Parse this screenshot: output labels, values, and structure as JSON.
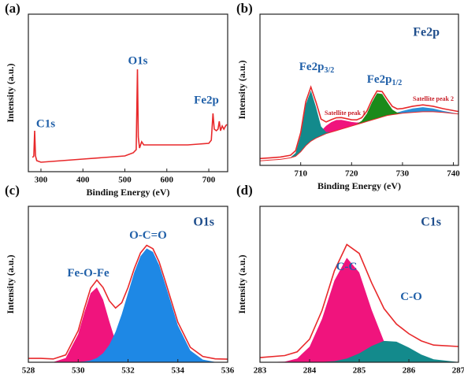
{
  "chart_data": [
    {
      "type": "line",
      "panel_label": "(a)",
      "xlabel": "Binding Energy (eV)",
      "ylabel": "Intensity (a.u.)",
      "xlim": [
        270,
        745
      ],
      "xticks": [
        300,
        400,
        500,
        600,
        700
      ],
      "ylim": [
        0,
        100
      ],
      "annotations": [
        "C1s",
        "O1s",
        "Fe2p"
      ],
      "x": [
        280,
        283,
        285,
        287,
        290,
        300,
        350,
        400,
        450,
        500,
        520,
        527,
        530,
        532,
        535,
        540,
        545,
        560,
        600,
        650,
        700,
        706,
        710,
        713,
        718,
        722,
        725,
        728,
        732,
        736,
        740,
        743
      ],
      "series": [
        {
          "color": "#e8292b",
          "values": [
            9,
            10,
            26,
            10,
            7,
            6,
            7,
            8,
            9,
            10,
            12,
            14,
            65,
            22,
            15,
            19,
            17,
            17,
            17,
            17,
            18,
            20,
            37,
            27,
            26,
            27,
            32,
            26,
            29,
            27,
            29,
            30
          ]
        }
      ]
    },
    {
      "type": "area",
      "panel_label": "(b)",
      "title": "Fe2p",
      "xlabel": "Binding Energy (eV)",
      "ylabel": "Intensity (a.u.)",
      "xlim": [
        702,
        741
      ],
      "xticks": [
        710,
        720,
        730,
        740
      ],
      "ylim": [
        0,
        100
      ],
      "x": [
        702,
        704,
        706,
        708,
        709,
        710,
        711,
        712,
        713,
        714,
        715,
        716,
        717,
        718,
        719,
        720,
        721,
        722,
        723,
        724,
        725,
        726,
        727,
        728,
        729,
        730,
        732,
        734,
        736,
        738,
        741
      ],
      "baseline": {
        "color": "#e8292b",
        "values": [
          3,
          3.5,
          4,
          5,
          6,
          9,
          13,
          16,
          18,
          19.5,
          21,
          22,
          23,
          24,
          25,
          26,
          27,
          28,
          29,
          30,
          31,
          32,
          33,
          33.5,
          34,
          34.5,
          35,
          35.5,
          35.5,
          35,
          34
        ]
      },
      "series": [
        {
          "name": "Satellite peak 1",
          "color": "#f0147d",
          "fill": true,
          "values": [
            0,
            0,
            0,
            0,
            0,
            0.1,
            0.3,
            0.8,
            1.8,
            3.3,
            5.2,
            6.6,
            7,
            6.1,
            4.4,
            2.7,
            1.3,
            0.5,
            0.2,
            0.1,
            0,
            0,
            0,
            0,
            0,
            0,
            0,
            0,
            0,
            0,
            0
          ]
        },
        {
          "name": "Satellite peak 2",
          "color": "#2a8fd8",
          "fill": true,
          "values": [
            0,
            0,
            0,
            0,
            0,
            0,
            0,
            0,
            0,
            0,
            0,
            0,
            0,
            0,
            0,
            0,
            0,
            0,
            0,
            0,
            0,
            0.1,
            0.3,
            0.6,
            1,
            1.5,
            2.6,
            3,
            2.1,
            1,
            0.1
          ]
        },
        {
          "name": "Fe2p",
          "subscript": "3/2",
          "color": "#138a8c",
          "fill": true,
          "values": [
            0,
            0,
            0,
            0.2,
            2.2,
            11,
            27.3,
            33.5,
            20.6,
            6.3,
            1,
            0.1,
            0,
            0,
            0,
            0,
            0,
            0,
            0,
            0,
            0,
            0,
            0,
            0,
            0,
            0,
            0,
            0,
            0,
            0,
            0
          ]
        },
        {
          "name": "Fe2p",
          "subscript": "1/2",
          "color": "#1a8a1a",
          "fill": true,
          "values": [
            0,
            0,
            0,
            0,
            0,
            0,
            0,
            0,
            0,
            0,
            0,
            0,
            0,
            0,
            0,
            0,
            0.3,
            1.5,
            5.2,
            11.7,
            16.7,
            15.2,
            8.9,
            3.4,
            0.8,
            0.1,
            0,
            0,
            0,
            0,
            0
          ]
        },
        {
          "color": "#e8292b",
          "fill": false,
          "values": [
            4.5,
            5,
            5.5,
            6.7,
            9.7,
            21.6,
            42.1,
            51.8,
            41.9,
            30.6,
            28.7,
            30.2,
            31.5,
            31.6,
            30.9,
            30.2,
            30.1,
            31.5,
            35.9,
            43.3,
            49.2,
            48.8,
            43.7,
            39,
            37.3,
            37.6,
            39.1,
            40,
            39.1,
            37.5,
            35.6
          ]
        }
      ]
    },
    {
      "type": "area",
      "panel_label": "(c)",
      "title": "O1s",
      "xlabel": "Binding Energy (eV)",
      "ylabel": "Intensity (a.u.)",
      "xlim": [
        528,
        536
      ],
      "xticks": [
        528,
        530,
        532,
        534,
        536
      ],
      "ylim": [
        0,
        100
      ],
      "x": [
        528,
        528.5,
        529,
        529.5,
        530,
        530.25,
        530.5,
        530.75,
        531,
        531.25,
        531.5,
        531.75,
        532,
        532.25,
        532.5,
        532.75,
        533,
        533.25,
        533.5,
        534,
        534.5,
        535,
        535.5,
        536
      ],
      "series": [
        {
          "name": "Fe-O-Fe",
          "color": "#f0147d",
          "fill": true,
          "values": [
            0,
            0,
            0.1,
            2.7,
            18,
            32,
            44.3,
            48,
            40.1,
            26.2,
            13.3,
            5.3,
            1.6,
            0.4,
            0.1,
            0,
            0,
            0,
            0,
            0,
            0,
            0,
            0,
            0
          ]
        },
        {
          "name": "O-C=O",
          "color": "#1e88e5",
          "fill": true,
          "values": [
            0,
            0,
            0,
            0,
            0.2,
            0.5,
            1.2,
            2.7,
            5.8,
            11.2,
            19.5,
            30.9,
            44.3,
            57.6,
            68,
            73,
            70.8,
            62.3,
            49.8,
            23.7,
            7.6,
            1.7,
            0.2,
            0
          ]
        },
        {
          "color": "#e8292b",
          "fill": false,
          "values": [
            2.5,
            2.5,
            2.1,
            4.7,
            20.2,
            34.5,
            47.5,
            52.7,
            47.9,
            39.4,
            34.8,
            38.2,
            47.9,
            60,
            70.1,
            75,
            72.8,
            64.3,
            51.8,
            25.7,
            9.6,
            3.7,
            2.2,
            2
          ]
        }
      ]
    },
    {
      "type": "area",
      "panel_label": "(d)",
      "title": "C1s",
      "xlabel": "Binding Energy (eV)",
      "ylabel": "Intensity (a.u.)",
      "xlim": [
        283,
        287
      ],
      "xticks": [
        283,
        284,
        285,
        286,
        287
      ],
      "ylim": [
        0,
        100
      ],
      "x": [
        283,
        283.5,
        283.75,
        284,
        284.25,
        284.5,
        284.75,
        285,
        285.25,
        285.5,
        285.75,
        286,
        286.25,
        286.5,
        287
      ],
      "series": [
        {
          "name": "C-C",
          "color": "#f0147d",
          "fill": true,
          "values": [
            0,
            0.4,
            2.4,
            10,
            27.8,
            52.4,
            67,
            57.6,
            33.6,
            13.3,
            3.5,
            0.6,
            0.1,
            0,
            0
          ]
        },
        {
          "name": "C-O",
          "color": "#138a8c",
          "fill": true,
          "values": [
            0,
            0,
            0,
            0,
            0.2,
            0.7,
            2.4,
            5.7,
            10.4,
            13.7,
            13.2,
            9.4,
            4.9,
            1.9,
            0.1
          ]
        },
        {
          "color": "#e8292b",
          "fill": false,
          "values": [
            3,
            4.3,
            6.7,
            14.8,
            33.2,
            58.7,
            75.5,
            69.8,
            50.9,
            34.4,
            24.5,
            18.3,
            13.7,
            11,
            10.1
          ]
        }
      ]
    }
  ]
}
